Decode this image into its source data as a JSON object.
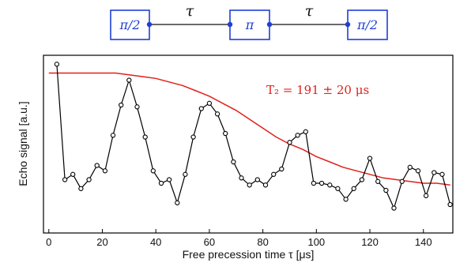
{
  "pulse_sequence": {
    "pulses": [
      {
        "label": "π/2"
      },
      {
        "label": "π"
      },
      {
        "label": "π/2"
      }
    ],
    "delays": [
      "τ",
      "τ"
    ],
    "colors": {
      "pulse": "#1f3fd6",
      "line": "#111111"
    }
  },
  "chart_data": {
    "type": "line",
    "xlabel": "Free precession time τ  [μs]",
    "ylabel": "Echo signal [a.u.]",
    "xlim": [
      -2,
      151
    ],
    "ylim": [
      0,
      1
    ],
    "xticks": [
      0,
      20,
      40,
      60,
      80,
      100,
      120,
      140
    ],
    "yticks_labeled": false,
    "grid": false,
    "series": [
      {
        "kind": "data",
        "color": "#000000",
        "marker": "open-circle",
        "x": [
          3,
          6,
          9,
          12,
          15,
          18,
          21,
          24,
          27,
          30,
          33,
          36,
          39,
          42,
          45,
          48,
          51,
          54,
          57,
          60,
          63,
          66,
          69,
          72,
          75,
          78,
          81,
          84,
          87,
          90,
          93,
          96,
          99,
          102,
          105,
          108,
          111,
          114,
          117,
          120,
          123,
          126,
          129,
          132,
          135,
          138,
          141,
          144,
          147,
          150
        ],
        "y": [
          0.95,
          0.3,
          0.33,
          0.25,
          0.3,
          0.38,
          0.35,
          0.55,
          0.72,
          0.86,
          0.71,
          0.54,
          0.35,
          0.28,
          0.3,
          0.17,
          0.33,
          0.54,
          0.7,
          0.73,
          0.67,
          0.56,
          0.4,
          0.31,
          0.27,
          0.3,
          0.27,
          0.33,
          0.36,
          0.51,
          0.55,
          0.57,
          0.28,
          0.28,
          0.27,
          0.25,
          0.19,
          0.25,
          0.3,
          0.42,
          0.29,
          0.24,
          0.14,
          0.29,
          0.37,
          0.35,
          0.21,
          0.34,
          0.33,
          0.16
        ]
      },
      {
        "kind": "fit",
        "color": "#e0201b",
        "x": [
          0,
          5,
          10,
          15,
          20,
          25,
          30,
          35,
          40,
          45,
          50,
          55,
          60,
          65,
          70,
          75,
          80,
          85,
          90,
          95,
          100,
          105,
          110,
          115,
          120,
          125,
          130,
          135,
          140,
          145,
          150
        ],
        "y": [
          0.9,
          0.9,
          0.9,
          0.9,
          0.9,
          0.9,
          0.89,
          0.88,
          0.87,
          0.85,
          0.83,
          0.8,
          0.77,
          0.73,
          0.69,
          0.64,
          0.59,
          0.54,
          0.5,
          0.47,
          0.43,
          0.4,
          0.37,
          0.35,
          0.33,
          0.31,
          0.3,
          0.29,
          0.28,
          0.28,
          0.27
        ]
      }
    ],
    "annotations": [
      {
        "text": "T₂ = 191 ± 20 μs",
        "x": 107,
        "y": 0.89,
        "color": "#e0201b"
      }
    ]
  }
}
